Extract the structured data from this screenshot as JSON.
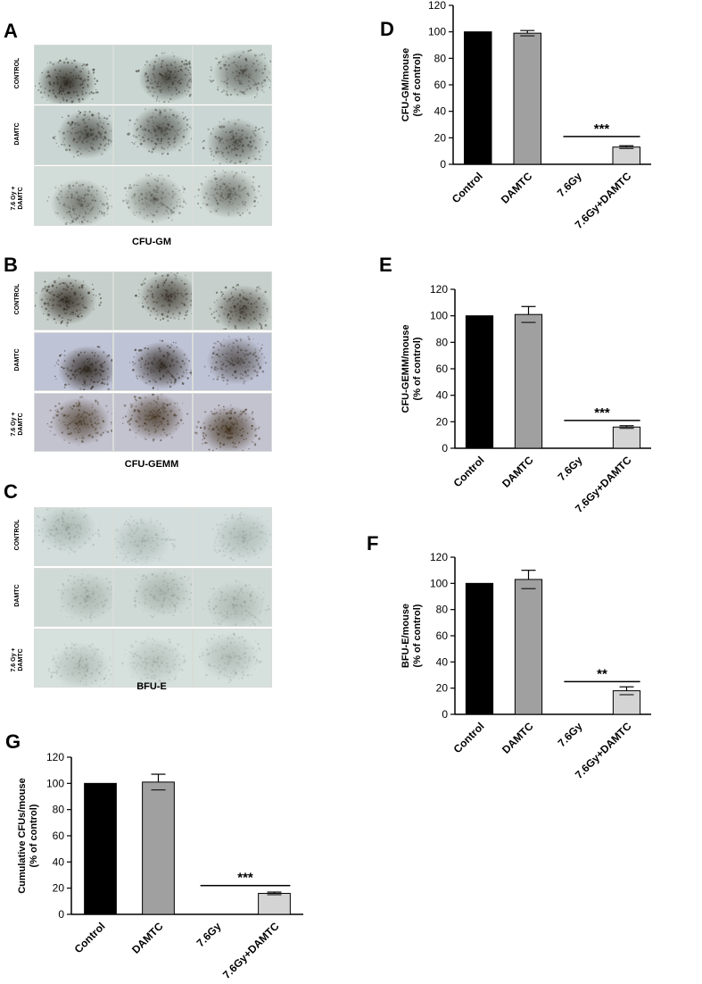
{
  "panels": {
    "A": {
      "letter": "A",
      "caption": "CFU-GM",
      "rows": [
        {
          "label": "CONTROL",
          "bg": "#c9d6d2",
          "colony": "#2e2a22",
          "cells": [
            {
              "density": 0.95
            },
            {
              "density": 0.8
            },
            {
              "density": 0.6
            }
          ]
        },
        {
          "label": "DAMTC",
          "bg": "#cad6d3",
          "colony": "#2f2c24",
          "cells": [
            {
              "density": 0.75
            },
            {
              "density": 0.7
            },
            {
              "density": 0.65
            }
          ]
        },
        {
          "label": "7.6 Gy +\nDAMTC",
          "bg": "#d2dcd8",
          "colony": "#3a3a30",
          "cells": [
            {
              "density": 0.6
            },
            {
              "density": 0.55
            },
            {
              "density": 0.6
            }
          ]
        }
      ]
    },
    "B": {
      "letter": "B",
      "caption": "CFU-GEMM",
      "rows": [
        {
          "label": "CONTROL",
          "bg": "#c6cfcb",
          "colony": "#2a2218",
          "cells": [
            {
              "density": 0.85
            },
            {
              "density": 0.75
            },
            {
              "density": 0.7
            }
          ]
        },
        {
          "label": "DAMTC",
          "bg": "#bfc3d6",
          "colony": "#2a2218",
          "cells": [
            {
              "density": 0.9
            },
            {
              "density": 0.85
            },
            {
              "density": 0.65
            }
          ]
        },
        {
          "label": "7.6 Gy +\nDAMTC",
          "bg": "#c3c2cf",
          "colony": "#3a2a14",
          "cells": [
            {
              "density": 0.7
            },
            {
              "density": 0.75
            },
            {
              "density": 0.8
            }
          ]
        }
      ]
    },
    "C": {
      "letter": "C",
      "caption": "BFU-E",
      "rows": [
        {
          "label": "CONTROL",
          "bg": "#d3dedc",
          "colony": "#7a8a80",
          "cells": [
            {
              "density": 0.45
            },
            {
              "density": 0.35
            },
            {
              "density": 0.4
            }
          ]
        },
        {
          "label": "DAMTC",
          "bg": "#cfd9d6",
          "colony": "#7d8a80",
          "cells": [
            {
              "density": 0.4
            },
            {
              "density": 0.45
            },
            {
              "density": 0.4
            }
          ]
        },
        {
          "label": "7.6 Gy +\nDAMTC",
          "bg": "#d6e0dd",
          "colony": "#7e8a82",
          "cells": [
            {
              "density": 0.4
            },
            {
              "density": 0.35
            },
            {
              "density": 0.4
            }
          ]
        }
      ]
    }
  },
  "chart_data": [
    {
      "panel": "D",
      "type": "bar",
      "categories": [
        "Control",
        "DAMTC",
        "7.6Gy",
        "7.6Gy+DAMTC"
      ],
      "values": [
        100,
        99,
        0,
        13
      ],
      "errors": [
        0,
        2,
        0,
        1
      ],
      "colors": [
        "#000000",
        "#a0a0a0",
        "#ffffff",
        "#d4d4d4"
      ],
      "ylabel": "CFU-GM/mouse\n(% of control)",
      "ylim": [
        0,
        120
      ],
      "yticks": [
        0,
        20,
        40,
        60,
        80,
        100,
        120
      ],
      "significance": {
        "label": "***",
        "from": 2,
        "to": 3,
        "y": 21
      }
    },
    {
      "panel": "E",
      "type": "bar",
      "categories": [
        "Control",
        "DAMTC",
        "7.6Gy",
        "7.6Gy+DAMTC"
      ],
      "values": [
        100,
        101,
        0,
        16
      ],
      "errors": [
        0,
        6,
        0,
        1
      ],
      "colors": [
        "#000000",
        "#a0a0a0",
        "#ffffff",
        "#d4d4d4"
      ],
      "ylabel": "CFU-GEMM/mouse\n(% of control)",
      "ylim": [
        0,
        120
      ],
      "yticks": [
        0,
        20,
        40,
        60,
        80,
        100,
        120
      ],
      "significance": {
        "label": "***",
        "from": 2,
        "to": 3,
        "y": 21
      }
    },
    {
      "panel": "F",
      "type": "bar",
      "categories": [
        "Control",
        "DAMTC",
        "7.6Gy",
        "7.6Gy+DAMTC"
      ],
      "values": [
        100,
        103,
        0,
        18
      ],
      "errors": [
        0,
        7,
        0,
        3
      ],
      "colors": [
        "#000000",
        "#a0a0a0",
        "#ffffff",
        "#d4d4d4"
      ],
      "ylabel": "BFU-E/mouse\n(% of control)",
      "ylim": [
        0,
        120
      ],
      "yticks": [
        0,
        20,
        40,
        60,
        80,
        100,
        120
      ],
      "significance": {
        "label": "**",
        "from": 2,
        "to": 3,
        "y": 25
      }
    },
    {
      "panel": "G",
      "type": "bar",
      "categories": [
        "Control",
        "DAMTC",
        "7.6Gy",
        "7.6Gy+DAMTC"
      ],
      "values": [
        100,
        101,
        0,
        16
      ],
      "errors": [
        0,
        6,
        0,
        1
      ],
      "colors": [
        "#000000",
        "#a0a0a0",
        "#ffffff",
        "#d4d4d4"
      ],
      "ylabel": "Cumulative CFUs/mouse\n(% of control)",
      "ylim": [
        0,
        120
      ],
      "yticks": [
        0,
        20,
        40,
        60,
        80,
        100,
        120
      ],
      "significance": {
        "label": "***",
        "from": 2,
        "to": 3,
        "y": 22
      }
    }
  ]
}
